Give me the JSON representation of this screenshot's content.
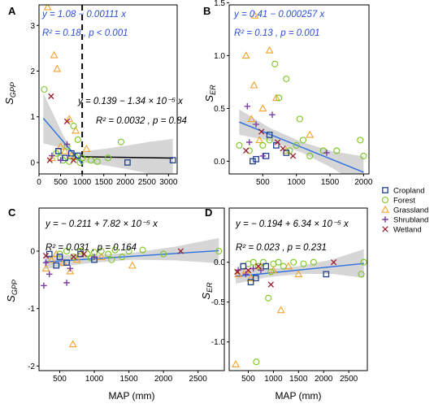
{
  "colors": {
    "Cropland": "#1f3f8f",
    "Forest": "#7cc61f",
    "Grassland": "#f5a12b",
    "Shrubland": "#7b3fa0",
    "Wetland": "#9b1c2e",
    "fit": "#2b6fe0",
    "fit_black": "#000000",
    "band": "#cfcfcf"
  },
  "legend": {
    "placement": "right",
    "entries": [
      {
        "name": "Cropland",
        "shape": "square"
      },
      {
        "name": "Forest",
        "shape": "circle"
      },
      {
        "name": "Grassland",
        "shape": "triangle"
      },
      {
        "name": "Shrubland",
        "shape": "plus"
      },
      {
        "name": "Wetland",
        "shape": "cross"
      }
    ]
  },
  "chart_data": [
    {
      "type": "scatter",
      "panel": "A",
      "xlim": [
        0,
        3200
      ],
      "ylim": [
        -0.25,
        3.45
      ],
      "xticks": [
        0,
        500,
        1000,
        1500,
        2000,
        2500,
        3000
      ],
      "xtick_labels": [
        "0",
        "500",
        "1000",
        "1500",
        "2000",
        "2500",
        "3000"
      ],
      "yticks": [
        0,
        1,
        2,
        3
      ],
      "ylabel_main": "S",
      "ylabel_sub": "GPP",
      "vline": 1000,
      "eq1": "y = 1.08 − 0.00111 x",
      "r2_1": "R² = 0.18 , p < 0.001",
      "eq2": "y = 0.139 − 1.34 × 10⁻⁵ x",
      "r2_2": "R² = 0.0032 , p = 0.84",
      "fits": [
        {
          "x0": 100,
          "x1": 1000,
          "y0": 0.969,
          "y1": -0.03,
          "color_key": "fit",
          "band": [
            0.55,
            0.35,
            0.15,
            0.02,
            0.05
          ]
        },
        {
          "x0": 1000,
          "x1": 3100,
          "y0": 0.126,
          "y1": 0.097,
          "color_key": "fit_black",
          "band": [
            0.12,
            0.18,
            0.26,
            0.35,
            0.42
          ]
        }
      ],
      "points": [
        {
          "c": "Grassland",
          "x": 200,
          "y": 3.4
        },
        {
          "c": "Grassland",
          "x": 350,
          "y": 2.35
        },
        {
          "c": "Grassland",
          "x": 420,
          "y": 2.05
        },
        {
          "c": "Grassland",
          "x": 700,
          "y": 0.95
        },
        {
          "c": "Grassland",
          "x": 850,
          "y": 0.7
        },
        {
          "c": "Grassland",
          "x": 500,
          "y": 0.35
        },
        {
          "c": "Grassland",
          "x": 600,
          "y": 0.25
        },
        {
          "c": "Grassland",
          "x": 1100,
          "y": 0.3
        },
        {
          "c": "Grassland",
          "x": 300,
          "y": 0.1
        },
        {
          "c": "Grassland",
          "x": 750,
          "y": 0.15
        },
        {
          "c": "Forest",
          "x": 120,
          "y": 1.6
        },
        {
          "c": "Forest",
          "x": 800,
          "y": 0.8
        },
        {
          "c": "Forest",
          "x": 900,
          "y": 0.5
        },
        {
          "c": "Forest",
          "x": 1900,
          "y": 0.45
        },
        {
          "c": "Forest",
          "x": 650,
          "y": 0.35
        },
        {
          "c": "Forest",
          "x": 1000,
          "y": 0.1
        },
        {
          "c": "Forest",
          "x": 1200,
          "y": 0.05
        },
        {
          "c": "Forest",
          "x": 1350,
          "y": 0.02
        },
        {
          "c": "Forest",
          "x": 1600,
          "y": 0.1
        },
        {
          "c": "Forest",
          "x": 500,
          "y": 0.1
        },
        {
          "c": "Forest",
          "x": 560,
          "y": 0.05
        },
        {
          "c": "Forest",
          "x": 700,
          "y": 0.02
        },
        {
          "c": "Forest",
          "x": 850,
          "y": 0.12
        },
        {
          "c": "Forest",
          "x": 950,
          "y": 0.0
        },
        {
          "c": "Forest",
          "x": 400,
          "y": 0.2
        },
        {
          "c": "Cropland",
          "x": 450,
          "y": 0.25
        },
        {
          "c": "Cropland",
          "x": 750,
          "y": 0.2
        },
        {
          "c": "Cropland",
          "x": 900,
          "y": 0.15
        },
        {
          "c": "Cropland",
          "x": 2050,
          "y": 0.0
        },
        {
          "c": "Cropland",
          "x": 3100,
          "y": 0.05
        },
        {
          "c": "Cropland",
          "x": 600,
          "y": 0.1
        },
        {
          "c": "Shrubland",
          "x": 300,
          "y": 0.15
        },
        {
          "c": "Shrubland",
          "x": 650,
          "y": 0.4
        },
        {
          "c": "Shrubland",
          "x": 500,
          "y": 0.05
        },
        {
          "c": "Wetland",
          "x": 280,
          "y": 1.45
        },
        {
          "c": "Wetland",
          "x": 250,
          "y": 0.05
        },
        {
          "c": "Wetland",
          "x": 650,
          "y": 0.9
        },
        {
          "c": "Wetland",
          "x": 800,
          "y": 0.05
        }
      ]
    },
    {
      "type": "scatter",
      "panel": "B",
      "xlim": [
        0,
        2080
      ],
      "ylim": [
        -0.12,
        1.48
      ],
      "xticks": [
        500,
        1000,
        1500,
        2000
      ],
      "xtick_labels": [
        "500",
        "1000",
        "1500",
        "2000"
      ],
      "yticks": [
        0.0,
        0.5,
        1.0,
        1.5
      ],
      "ytick_labels": [
        "0.0",
        "0.5",
        "1.0",
        "1.5"
      ],
      "ylabel_main": "S",
      "ylabel_sub": "ER",
      "eq1": "y = 0.41 − 0.000257 x",
      "r2_1": "R² = 0.13 , p = 0.001",
      "fits": [
        {
          "x0": 150,
          "x1": 2000,
          "y0": 0.371,
          "y1": -0.104,
          "color_key": "fit",
          "band": [
            0.12,
            0.06,
            0.05,
            0.08,
            0.15
          ]
        }
      ],
      "points": [
        {
          "c": "Grassland",
          "x": 380,
          "y": 1.38
        },
        {
          "c": "Grassland",
          "x": 600,
          "y": 1.05
        },
        {
          "c": "Grassland",
          "x": 250,
          "y": 1.0
        },
        {
          "c": "Grassland",
          "x": 370,
          "y": 0.72
        },
        {
          "c": "Grassland",
          "x": 700,
          "y": 0.6
        },
        {
          "c": "Grassland",
          "x": 500,
          "y": 0.5
        },
        {
          "c": "Grassland",
          "x": 330,
          "y": 0.4
        },
        {
          "c": "Grassland",
          "x": 1200,
          "y": 0.25
        },
        {
          "c": "Grassland",
          "x": 450,
          "y": 0.2
        },
        {
          "c": "Grassland",
          "x": 850,
          "y": 0.1
        },
        {
          "c": "Forest",
          "x": 680,
          "y": 0.92
        },
        {
          "c": "Forest",
          "x": 850,
          "y": 0.78
        },
        {
          "c": "Forest",
          "x": 740,
          "y": 0.6
        },
        {
          "c": "Forest",
          "x": 1050,
          "y": 0.4
        },
        {
          "c": "Forest",
          "x": 1950,
          "y": 0.2
        },
        {
          "c": "Forest",
          "x": 2000,
          "y": 0.05
        },
        {
          "c": "Forest",
          "x": 1400,
          "y": 0.1
        },
        {
          "c": "Forest",
          "x": 1200,
          "y": 0.05
        },
        {
          "c": "Forest",
          "x": 1000,
          "y": 0.15
        },
        {
          "c": "Forest",
          "x": 900,
          "y": 0.1
        },
        {
          "c": "Forest",
          "x": 600,
          "y": 0.2
        },
        {
          "c": "Forest",
          "x": 500,
          "y": 0.15
        },
        {
          "c": "Forest",
          "x": 300,
          "y": 0.1
        },
        {
          "c": "Forest",
          "x": 1600,
          "y": 0.1
        },
        {
          "c": "Forest",
          "x": 1100,
          "y": 0.2
        },
        {
          "c": "Forest",
          "x": 150,
          "y": 0.15
        },
        {
          "c": "Cropland",
          "x": 350,
          "y": 0.0
        },
        {
          "c": "Cropland",
          "x": 400,
          "y": 0.02
        },
        {
          "c": "Cropland",
          "x": 550,
          "y": 0.05
        },
        {
          "c": "Cropland",
          "x": 700,
          "y": 0.15
        },
        {
          "c": "Cropland",
          "x": 850,
          "y": 0.08
        },
        {
          "c": "Cropland",
          "x": 600,
          "y": 0.25
        },
        {
          "c": "Shrubland",
          "x": 270,
          "y": 0.52
        },
        {
          "c": "Shrubland",
          "x": 400,
          "y": 0.35
        },
        {
          "c": "Shrubland",
          "x": 640,
          "y": 0.44
        },
        {
          "c": "Shrubland",
          "x": 300,
          "y": 0.18
        },
        {
          "c": "Shrubland",
          "x": 1450,
          "y": 0.08
        },
        {
          "c": "Shrubland",
          "x": 500,
          "y": 0.05
        },
        {
          "c": "Wetland",
          "x": 250,
          "y": 0.1
        },
        {
          "c": "Wetland",
          "x": 480,
          "y": 0.28
        },
        {
          "c": "Wetland",
          "x": 800,
          "y": 0.12
        },
        {
          "c": "Wetland",
          "x": 950,
          "y": 0.05
        },
        {
          "c": "Wetland",
          "x": 720,
          "y": 0.18
        }
      ]
    },
    {
      "type": "scatter",
      "panel": "C",
      "xlim": [
        200,
        2880
      ],
      "ylim": [
        -2.08,
        0.75
      ],
      "xticks": [
        500,
        1000,
        1500,
        2000,
        2500
      ],
      "xtick_labels": [
        "500",
        "1000",
        "1500",
        "2000",
        "2500"
      ],
      "yticks": [
        -2,
        -1,
        0
      ],
      "ytick_labels": [
        "-2",
        "-1",
        "0"
      ],
      "ylabel_main": "S",
      "ylabel_sub": "GPP",
      "xlabel": "MAP (mm)",
      "eq1": "y = − 0.211 + 7.82 × 10⁻⁵ x",
      "r2_1": "R² = 0.031 , p = 0.164",
      "fits": [
        {
          "x0": 280,
          "x1": 2800,
          "y0": -0.189,
          "y1": 0.008,
          "color_key": "fit",
          "band": [
            0.12,
            0.07,
            0.06,
            0.12,
            0.22
          ]
        }
      ],
      "points": [
        {
          "c": "Grassland",
          "x": 300,
          "y": -0.3
        },
        {
          "c": "Grassland",
          "x": 380,
          "y": -0.15
        },
        {
          "c": "Grassland",
          "x": 450,
          "y": -0.05
        },
        {
          "c": "Grassland",
          "x": 550,
          "y": -0.2
        },
        {
          "c": "Grassland",
          "x": 690,
          "y": -1.62
        },
        {
          "c": "Grassland",
          "x": 750,
          "y": -0.15
        },
        {
          "c": "Grassland",
          "x": 800,
          "y": -0.05
        },
        {
          "c": "Grassland",
          "x": 1550,
          "y": -0.25
        },
        {
          "c": "Grassland",
          "x": 1100,
          "y": -0.1
        },
        {
          "c": "Grassland",
          "x": 650,
          "y": -0.35
        },
        {
          "c": "Forest",
          "x": 500,
          "y": -0.05
        },
        {
          "c": "Forest",
          "x": 600,
          "y": 0.0
        },
        {
          "c": "Forest",
          "x": 700,
          "y": -0.1
        },
        {
          "c": "Forest",
          "x": 800,
          "y": 0.0
        },
        {
          "c": "Forest",
          "x": 900,
          "y": -0.05
        },
        {
          "c": "Forest",
          "x": 1000,
          "y": -0.02
        },
        {
          "c": "Forest",
          "x": 1100,
          "y": 0.0
        },
        {
          "c": "Forest",
          "x": 1200,
          "y": -0.05
        },
        {
          "c": "Forest",
          "x": 1300,
          "y": 0.02
        },
        {
          "c": "Forest",
          "x": 1400,
          "y": -0.1
        },
        {
          "c": "Forest",
          "x": 1500,
          "y": 0.0
        },
        {
          "c": "Forest",
          "x": 1700,
          "y": 0.02
        },
        {
          "c": "Forest",
          "x": 2000,
          "y": -0.05
        },
        {
          "c": "Forest",
          "x": 2800,
          "y": 0.0
        },
        {
          "c": "Forest",
          "x": 1250,
          "y": -0.15
        },
        {
          "c": "Forest",
          "x": 950,
          "y": -0.12
        },
        {
          "c": "Cropland",
          "x": 350,
          "y": -0.05
        },
        {
          "c": "Cropland",
          "x": 500,
          "y": -0.1
        },
        {
          "c": "Cropland",
          "x": 600,
          "y": -0.2
        },
        {
          "c": "Cropland",
          "x": 800,
          "y": -0.05
        },
        {
          "c": "Cropland",
          "x": 1000,
          "y": -0.15
        },
        {
          "c": "Cropland",
          "x": 450,
          "y": -0.25
        },
        {
          "c": "Shrubland",
          "x": 270,
          "y": -0.6
        },
        {
          "c": "Shrubland",
          "x": 350,
          "y": -0.4
        },
        {
          "c": "Shrubland",
          "x": 600,
          "y": -0.55
        },
        {
          "c": "Shrubland",
          "x": 650,
          "y": -0.3
        },
        {
          "c": "Shrubland",
          "x": 300,
          "y": -0.2
        },
        {
          "c": "Shrubland",
          "x": 1000,
          "y": -0.1
        },
        {
          "c": "Wetland",
          "x": 300,
          "y": -0.08
        },
        {
          "c": "Wetland",
          "x": 700,
          "y": -0.1
        },
        {
          "c": "Wetland",
          "x": 2250,
          "y": 0.0
        },
        {
          "c": "Wetland",
          "x": 850,
          "y": -0.05
        }
      ]
    },
    {
      "type": "scatter",
      "panel": "D",
      "xlim": [
        120,
        2870
      ],
      "ylim": [
        -1.36,
        0.68
      ],
      "xticks": [
        500,
        1000,
        1500,
        2000,
        2500
      ],
      "xtick_labels": [
        "500",
        "1000",
        "1500",
        "2000",
        "2500"
      ],
      "yticks": [
        -1.0,
        -0.5,
        0.0
      ],
      "ytick_labels": [
        "-1.0",
        "-0.5",
        "0.0"
      ],
      "ylabel_main": "S",
      "ylabel_sub": "ER",
      "xlabel": "MAP (mm)",
      "eq1": "y = − 0.194 + 6.34 × 10⁻⁵ x",
      "r2_1": "R² = 0.023 , p = 0.231",
      "fits": [
        {
          "x0": 250,
          "x1": 2800,
          "y0": -0.178,
          "y1": -0.016,
          "color_key": "fit",
          "band": [
            0.09,
            0.05,
            0.05,
            0.09,
            0.18
          ]
        }
      ],
      "points": [
        {
          "c": "Grassland",
          "x": 250,
          "y": -1.28
        },
        {
          "c": "Grassland",
          "x": 1150,
          "y": -0.6
        },
        {
          "c": "Grassland",
          "x": 300,
          "y": -0.15
        },
        {
          "c": "Grassland",
          "x": 450,
          "y": -0.1
        },
        {
          "c": "Grassland",
          "x": 550,
          "y": -0.2
        },
        {
          "c": "Grassland",
          "x": 750,
          "y": -0.05
        },
        {
          "c": "Grassland",
          "x": 1000,
          "y": -0.1
        },
        {
          "c": "Grassland",
          "x": 1500,
          "y": -0.15
        },
        {
          "c": "Grassland",
          "x": 1300,
          "y": -0.05
        },
        {
          "c": "Forest",
          "x": 660,
          "y": -1.25
        },
        {
          "c": "Forest",
          "x": 900,
          "y": -0.45
        },
        {
          "c": "Forest",
          "x": 2750,
          "y": -0.15
        },
        {
          "c": "Forest",
          "x": 500,
          "y": -0.02
        },
        {
          "c": "Forest",
          "x": 600,
          "y": 0.0
        },
        {
          "c": "Forest",
          "x": 700,
          "y": -0.05
        },
        {
          "c": "Forest",
          "x": 800,
          "y": 0.0
        },
        {
          "c": "Forest",
          "x": 1000,
          "y": -0.02
        },
        {
          "c": "Forest",
          "x": 1100,
          "y": 0.0
        },
        {
          "c": "Forest",
          "x": 1200,
          "y": -0.05
        },
        {
          "c": "Forest",
          "x": 1400,
          "y": 0.0
        },
        {
          "c": "Forest",
          "x": 1600,
          "y": -0.02
        },
        {
          "c": "Forest",
          "x": 1800,
          "y": 0.0
        },
        {
          "c": "Forest",
          "x": 400,
          "y": -0.05
        },
        {
          "c": "Forest",
          "x": 2800,
          "y": 0.0
        },
        {
          "c": "Forest",
          "x": 950,
          "y": -0.12
        },
        {
          "c": "Cropland",
          "x": 400,
          "y": -0.05
        },
        {
          "c": "Cropland",
          "x": 550,
          "y": -0.25
        },
        {
          "c": "Cropland",
          "x": 650,
          "y": -0.2
        },
        {
          "c": "Cropland",
          "x": 850,
          "y": -0.05
        },
        {
          "c": "Cropland",
          "x": 2050,
          "y": -0.15
        },
        {
          "c": "Shrubland",
          "x": 300,
          "y": -0.1
        },
        {
          "c": "Shrubland",
          "x": 450,
          "y": -0.15
        },
        {
          "c": "Shrubland",
          "x": 600,
          "y": -0.08
        },
        {
          "c": "Shrubland",
          "x": 750,
          "y": -0.1
        },
        {
          "c": "Wetland",
          "x": 280,
          "y": -0.12
        },
        {
          "c": "Wetland",
          "x": 500,
          "y": -0.1
        },
        {
          "c": "Wetland",
          "x": 950,
          "y": -0.28
        },
        {
          "c": "Wetland",
          "x": 2200,
          "y": 0.0
        },
        {
          "c": "Wetland",
          "x": 700,
          "y": -0.05
        }
      ]
    }
  ]
}
